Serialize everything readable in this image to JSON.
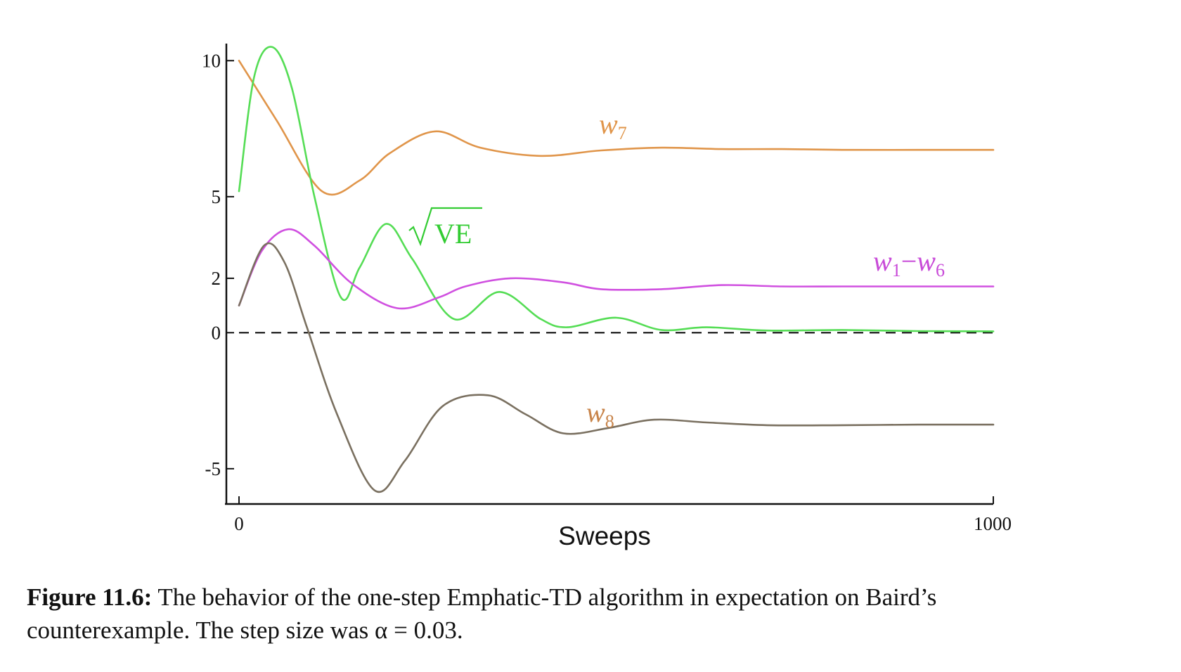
{
  "chart_data": {
    "type": "line",
    "xlabel": "Sweeps",
    "ylabel": "",
    "xlim": [
      0,
      1000
    ],
    "ylim": [
      -6.2,
      10.5
    ],
    "x_ticks": [
      "0",
      "1000"
    ],
    "y_ticks": [
      {
        "value": 10,
        "label": "10"
      },
      {
        "value": 5,
        "label": "5"
      },
      {
        "value": 2,
        "label": "2"
      },
      {
        "value": 0,
        "label": "0"
      },
      {
        "value": -5,
        "label": "-5"
      }
    ],
    "reference_line": {
      "y": 0,
      "style": "dashed"
    },
    "series": [
      {
        "name": "w7",
        "label_main": "w",
        "label_sub": "7",
        "color": "#e0954a",
        "x": [
          0,
          50,
          110,
          160,
          200,
          260,
          320,
          400,
          480,
          560,
          640,
          720,
          800,
          900,
          1000
        ],
        "y": [
          10.0,
          7.8,
          5.2,
          5.6,
          6.6,
          7.4,
          6.8,
          6.5,
          6.7,
          6.8,
          6.75,
          6.75,
          6.72,
          6.72,
          6.72
        ]
      },
      {
        "name": "√VE",
        "label_main": "VE",
        "color": "#55dd55",
        "x": [
          0,
          20,
          44,
          70,
          100,
          135,
          160,
          195,
          230,
          285,
          345,
          400,
          435,
          500,
          560,
          620,
          700,
          800,
          900,
          1000
        ],
        "y": [
          5.2,
          9.4,
          10.5,
          9.0,
          5.0,
          1.3,
          2.4,
          4.0,
          2.7,
          0.5,
          1.5,
          0.5,
          0.2,
          0.55,
          0.1,
          0.2,
          0.08,
          0.1,
          0.06,
          0.05
        ]
      },
      {
        "name": "w1−w6",
        "label_main": "w",
        "label_sub1": "1",
        "label_sep": "−",
        "label_main2": "w",
        "label_sub2": "6",
        "color": "#d050e0",
        "x": [
          0,
          30,
          65,
          100,
          150,
          210,
          265,
          300,
          360,
          430,
          480,
          560,
          640,
          720,
          800,
          900,
          1000
        ],
        "y": [
          1.0,
          3.0,
          3.8,
          3.2,
          1.8,
          0.9,
          1.3,
          1.7,
          2.0,
          1.85,
          1.6,
          1.6,
          1.75,
          1.7,
          1.7,
          1.7,
          1.7
        ]
      },
      {
        "name": "w8",
        "label_main": "w",
        "label_sub": "8",
        "color": "#7a7060",
        "x": [
          0,
          33,
          60,
          90,
          130,
          180,
          220,
          270,
          330,
          380,
          430,
          490,
          550,
          620,
          700,
          800,
          900,
          1000
        ],
        "y": [
          1.0,
          3.2,
          2.6,
          0.2,
          -3.0,
          -5.8,
          -4.7,
          -2.7,
          -2.3,
          -3.0,
          -3.7,
          -3.5,
          -3.2,
          -3.3,
          -3.4,
          -3.4,
          -3.38,
          -3.38
        ]
      }
    ]
  },
  "caption": {
    "lead": "Figure 11.6:",
    "line1": "The behavior of the one-step Emphatic-TD algorithm in expectation on Baird’s",
    "line2": "counterexample. The step size was α = 0.03."
  }
}
